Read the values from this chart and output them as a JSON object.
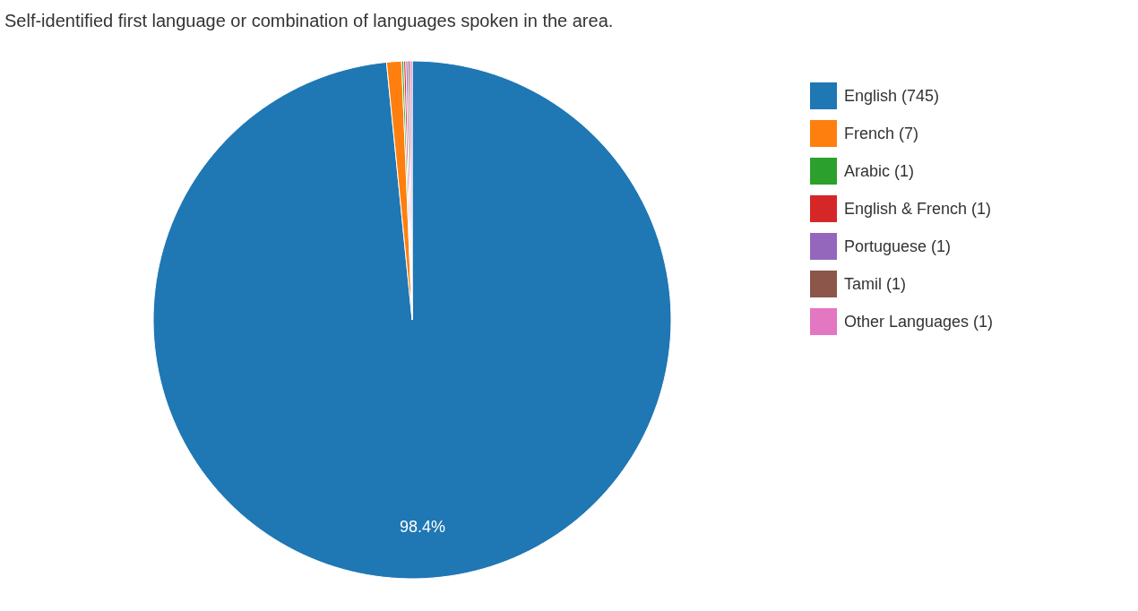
{
  "chart_data": {
    "type": "pie",
    "title": "Self-identified first language or combination of languages spoken in the area.",
    "categories": [
      "English (745)",
      "French (7)",
      "Arabic (1)",
      "English & French (1)",
      "Portuguese (1)",
      "Tamil (1)",
      "Other Languages (1)"
    ],
    "values": [
      98.4,
      0.93,
      0.13,
      0.13,
      0.13,
      0.13,
      0.13
    ],
    "colors": [
      "#1f77b4",
      "#ff7f0e",
      "#2ca02c",
      "#d62728",
      "#9467bd",
      "#8c564b",
      "#e377c2"
    ],
    "value_labels": [
      "98.4%",
      null,
      null,
      null,
      null,
      null,
      null
    ],
    "legend": "right"
  }
}
